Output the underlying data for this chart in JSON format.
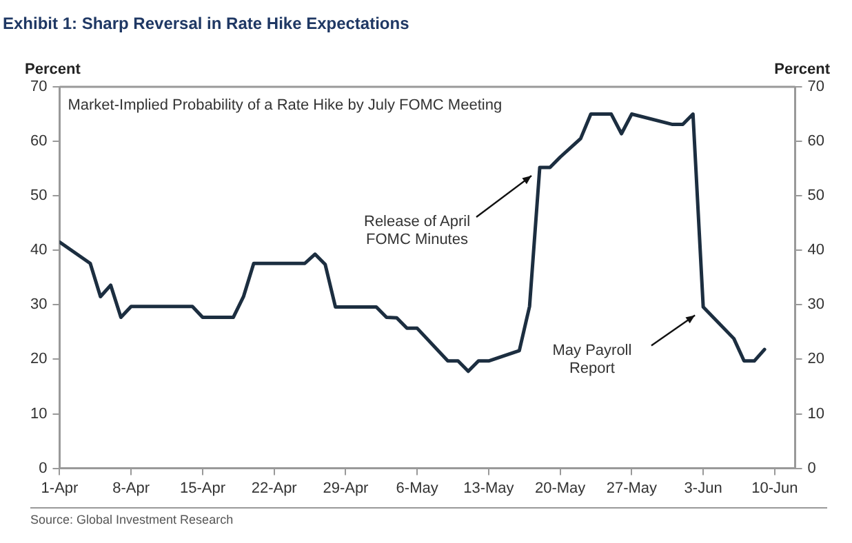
{
  "chart_data": {
    "type": "line",
    "title": "Exhibit 1: Sharp Reversal in Rate Hike Expectations",
    "subtitle": "Market-Implied Probability of a Rate Hike by July FOMC Meeting",
    "ylabel": "Percent",
    "y2label": "Percent",
    "x": [
      "--04-01",
      "--04-04",
      "--04-05",
      "--04-06",
      "--04-07",
      "--04-08",
      "--04-14",
      "--04-15",
      "--04-18",
      "--04-19",
      "--04-20",
      "--04-25",
      "--04-26",
      "--04-27",
      "--04-28",
      "--05-02",
      "--05-03",
      "--05-04",
      "--05-05",
      "--05-06",
      "--05-09",
      "--05-10",
      "--05-11",
      "--05-12",
      "--05-13",
      "--05-16",
      "--05-17",
      "--05-18",
      "--05-19",
      "--05-20",
      "--05-22",
      "--05-23",
      "--05-25",
      "--05-26",
      "--05-27",
      "--05-31",
      "--06-01",
      "--06-02",
      "--06-03",
      "--06-06",
      "--06-07",
      "--06-08",
      "--06-09"
    ],
    "series": [
      {
        "color": "#1c2e40",
        "values": [
          41.5,
          37.6,
          31.5,
          33.6,
          27.7,
          29.7,
          29.7,
          27.7,
          27.7,
          31.5,
          37.6,
          37.6,
          39.3,
          37.4,
          29.6,
          29.6,
          27.7,
          27.6,
          25.7,
          25.7,
          19.7,
          19.7,
          17.8,
          19.7,
          19.7,
          21.6,
          29.7,
          55.2,
          55.2,
          57.1,
          60.5,
          65,
          65,
          61.4,
          65,
          63.1,
          63.1,
          65,
          29.6,
          23.8,
          19.7,
          19.7,
          21.8
        ]
      }
    ],
    "xlim": [
      "--04-01",
      "--06-12"
    ],
    "xticks": [
      {
        "value": "--04-01",
        "label": "1-Apr"
      },
      {
        "value": "--04-08",
        "label": "8-Apr"
      },
      {
        "value": "--04-15",
        "label": "15-Apr"
      },
      {
        "value": "--04-22",
        "label": "22-Apr"
      },
      {
        "value": "--04-29",
        "label": "29-Apr"
      },
      {
        "value": "--05-06",
        "label": "6-May"
      },
      {
        "value": "--05-13",
        "label": "13-May"
      },
      {
        "value": "--05-20",
        "label": "20-May"
      },
      {
        "value": "--05-27",
        "label": "27-May"
      },
      {
        "value": "--06-03",
        "label": "3-Jun"
      },
      {
        "value": "--06-10",
        "label": "10-Jun"
      }
    ],
    "ylim": [
      0,
      70
    ],
    "yticks": [
      0,
      10,
      20,
      30,
      40,
      50,
      60,
      70
    ],
    "y2lim": [
      0,
      70
    ],
    "y2ticks": [
      0,
      10,
      20,
      30,
      40,
      50,
      60,
      70
    ],
    "grid": false,
    "legend": false,
    "marker": "none",
    "line_style": "solid",
    "annotations": [
      {
        "text": "Release of April\nFOMC Minutes",
        "x": "--05-18",
        "y": 55.2
      },
      {
        "text": "May Payroll\nReport",
        "x": "--06-03",
        "y": 29.6
      },
      "Source: Global Investment Research"
    ]
  }
}
